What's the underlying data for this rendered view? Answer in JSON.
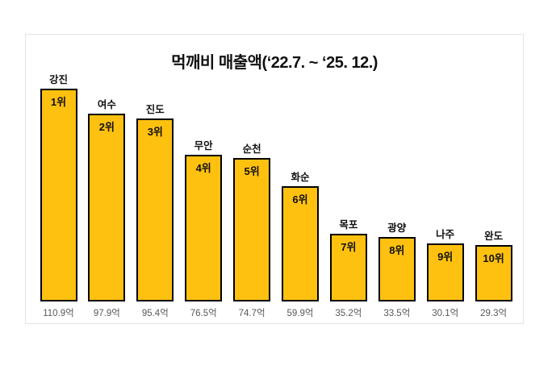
{
  "title": "먹깨비 매출액(‘22.7. ~ ‘25. 12.)",
  "chart_data": {
    "type": "bar",
    "title": "먹깨비 매출액(‘22.7. ~ ‘25. 12.)",
    "categories": [
      "강진",
      "여수",
      "진도",
      "무안",
      "순천",
      "화순",
      "목포",
      "광양",
      "나주",
      "완도"
    ],
    "values": [
      110.9,
      97.9,
      95.4,
      76.5,
      74.7,
      59.9,
      35.2,
      33.5,
      30.1,
      29.3
    ],
    "rank_labels": [
      "1위",
      "2위",
      "3위",
      "4위",
      "5위",
      "6위",
      "7위",
      "8위",
      "9위",
      "10위"
    ],
    "value_labels": [
      "110.9억",
      "97.9억",
      "95.4억",
      "76.5억",
      "74.7억",
      "59.9억",
      "35.2억",
      "33.5억",
      "30.1억",
      "29.3억"
    ],
    "unit": "억",
    "xlabel": "",
    "ylabel": "",
    "ylim": [
      0,
      120
    ],
    "grid": false,
    "legend": false,
    "bar_color": "#FFC110",
    "bar_border_color": "#000000",
    "label_color": "#111111",
    "value_label_color": "#595959"
  }
}
